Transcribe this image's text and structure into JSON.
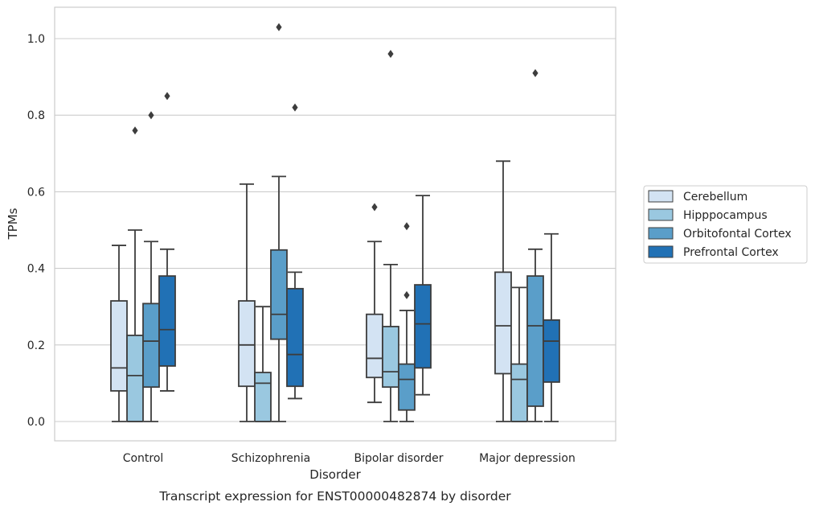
{
  "caption": "Transcript expression for ENST00000482874 by disorder",
  "chart_data": {
    "type": "box",
    "title": "",
    "xlabel": "Disorder",
    "ylabel": "TPMs",
    "ylim": [
      -0.05,
      1.08
    ],
    "yticks": [
      0.0,
      0.2,
      0.4,
      0.6,
      0.8,
      1.0
    ],
    "ytick_labels": [
      "0.0",
      "0.2",
      "0.4",
      "0.6",
      "0.8",
      "1.0"
    ],
    "grid": "horizontal",
    "legend_position": "right",
    "categories": [
      "Control",
      "Schizophrenia",
      "Bipolar disorder",
      "Major depression"
    ],
    "series": [
      {
        "name": "Cerebellum",
        "color": "#d3e3f3",
        "boxes": [
          {
            "whisker_low": 0.0,
            "q1": 0.08,
            "median": 0.14,
            "q3": 0.315,
            "whisker_high": 0.46,
            "outliers": []
          },
          {
            "whisker_low": 0.0,
            "q1": 0.092,
            "median": 0.2,
            "q3": 0.315,
            "whisker_high": 0.62,
            "outliers": []
          },
          {
            "whisker_low": 0.05,
            "q1": 0.115,
            "median": 0.165,
            "q3": 0.28,
            "whisker_high": 0.47,
            "outliers": [
              0.56
            ]
          },
          {
            "whisker_low": 0.0,
            "q1": 0.125,
            "median": 0.25,
            "q3": 0.39,
            "whisker_high": 0.68,
            "outliers": []
          }
        ]
      },
      {
        "name": "Hipppocampus",
        "color": "#9ac8e0",
        "boxes": [
          {
            "whisker_low": 0.0,
            "q1": 0.0,
            "median": 0.12,
            "q3": 0.225,
            "whisker_high": 0.5,
            "outliers": [
              0.76
            ]
          },
          {
            "whisker_low": 0.0,
            "q1": 0.0,
            "median": 0.1,
            "q3": 0.128,
            "whisker_high": 0.3,
            "outliers": []
          },
          {
            "whisker_low": 0.0,
            "q1": 0.09,
            "median": 0.13,
            "q3": 0.248,
            "whisker_high": 0.41,
            "outliers": [
              0.96
            ]
          },
          {
            "whisker_low": 0.0,
            "q1": 0.0,
            "median": 0.11,
            "q3": 0.15,
            "whisker_high": 0.35,
            "outliers": []
          }
        ]
      },
      {
        "name": "Orbitofontal Cortex",
        "color": "#5a9ec9",
        "boxes": [
          {
            "whisker_low": 0.0,
            "q1": 0.09,
            "median": 0.21,
            "q3": 0.308,
            "whisker_high": 0.47,
            "outliers": [
              0.8
            ]
          },
          {
            "whisker_low": 0.0,
            "q1": 0.215,
            "median": 0.28,
            "q3": 0.448,
            "whisker_high": 0.64,
            "outliers": [
              1.03
            ]
          },
          {
            "whisker_low": 0.0,
            "q1": 0.03,
            "median": 0.11,
            "q3": 0.15,
            "whisker_high": 0.29,
            "outliers": [
              0.33,
              0.51
            ]
          },
          {
            "whisker_low": 0.0,
            "q1": 0.04,
            "median": 0.25,
            "q3": 0.38,
            "whisker_high": 0.45,
            "outliers": [
              0.91
            ]
          }
        ]
      },
      {
        "name": "Prefrontal Cortex",
        "color": "#2171b5",
        "boxes": [
          {
            "whisker_low": 0.08,
            "q1": 0.145,
            "median": 0.24,
            "q3": 0.38,
            "whisker_high": 0.45,
            "outliers": [
              0.85
            ]
          },
          {
            "whisker_low": 0.06,
            "q1": 0.092,
            "median": 0.175,
            "q3": 0.347,
            "whisker_high": 0.39,
            "outliers": [
              0.82
            ]
          },
          {
            "whisker_low": 0.07,
            "q1": 0.14,
            "median": 0.255,
            "q3": 0.357,
            "whisker_high": 0.59,
            "outliers": []
          },
          {
            "whisker_low": 0.0,
            "q1": 0.103,
            "median": 0.21,
            "q3": 0.265,
            "whisker_high": 0.49,
            "outliers": []
          }
        ]
      }
    ]
  },
  "colors": {
    "grid": "#cccccc",
    "axes_border": "#cccccc",
    "box_edge": "#3d3d3d",
    "text": "#262626"
  }
}
